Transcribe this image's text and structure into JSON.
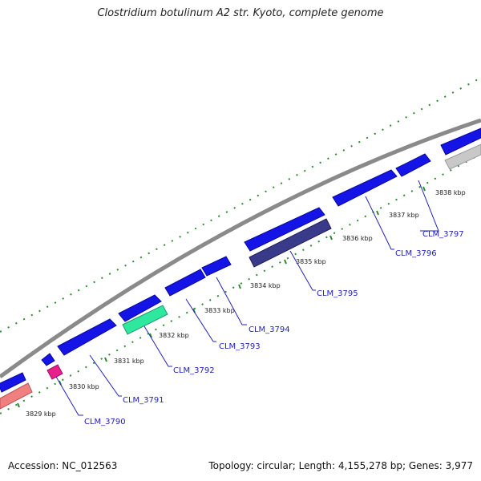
{
  "title": "Clostridium botulinum A2 str. Kyoto, complete genome",
  "accession_label": "Accession: NC_012563",
  "summary_label": "Topology: circular; Length: 4,155,278 bp; Genes: 3,977",
  "colors": {
    "backbone": "#8c8c8c",
    "tick": "#2e8b2e",
    "gene_forward": "#1414e6",
    "label": "#2222bb"
  },
  "ticks": [
    "3829 kbp",
    "3830 kbp",
    "3831 kbp",
    "3832 kbp",
    "3833 kbp",
    "3834 kbp",
    "3835 kbp",
    "3836 kbp",
    "3837 kbp",
    "3838 kbp"
  ],
  "gene_labels": [
    "CLM_3790",
    "CLM_3791",
    "CLM_3792",
    "CLM_3793",
    "CLM_3794",
    "CLM_3795",
    "CLM_3796",
    "CLM_3797"
  ]
}
